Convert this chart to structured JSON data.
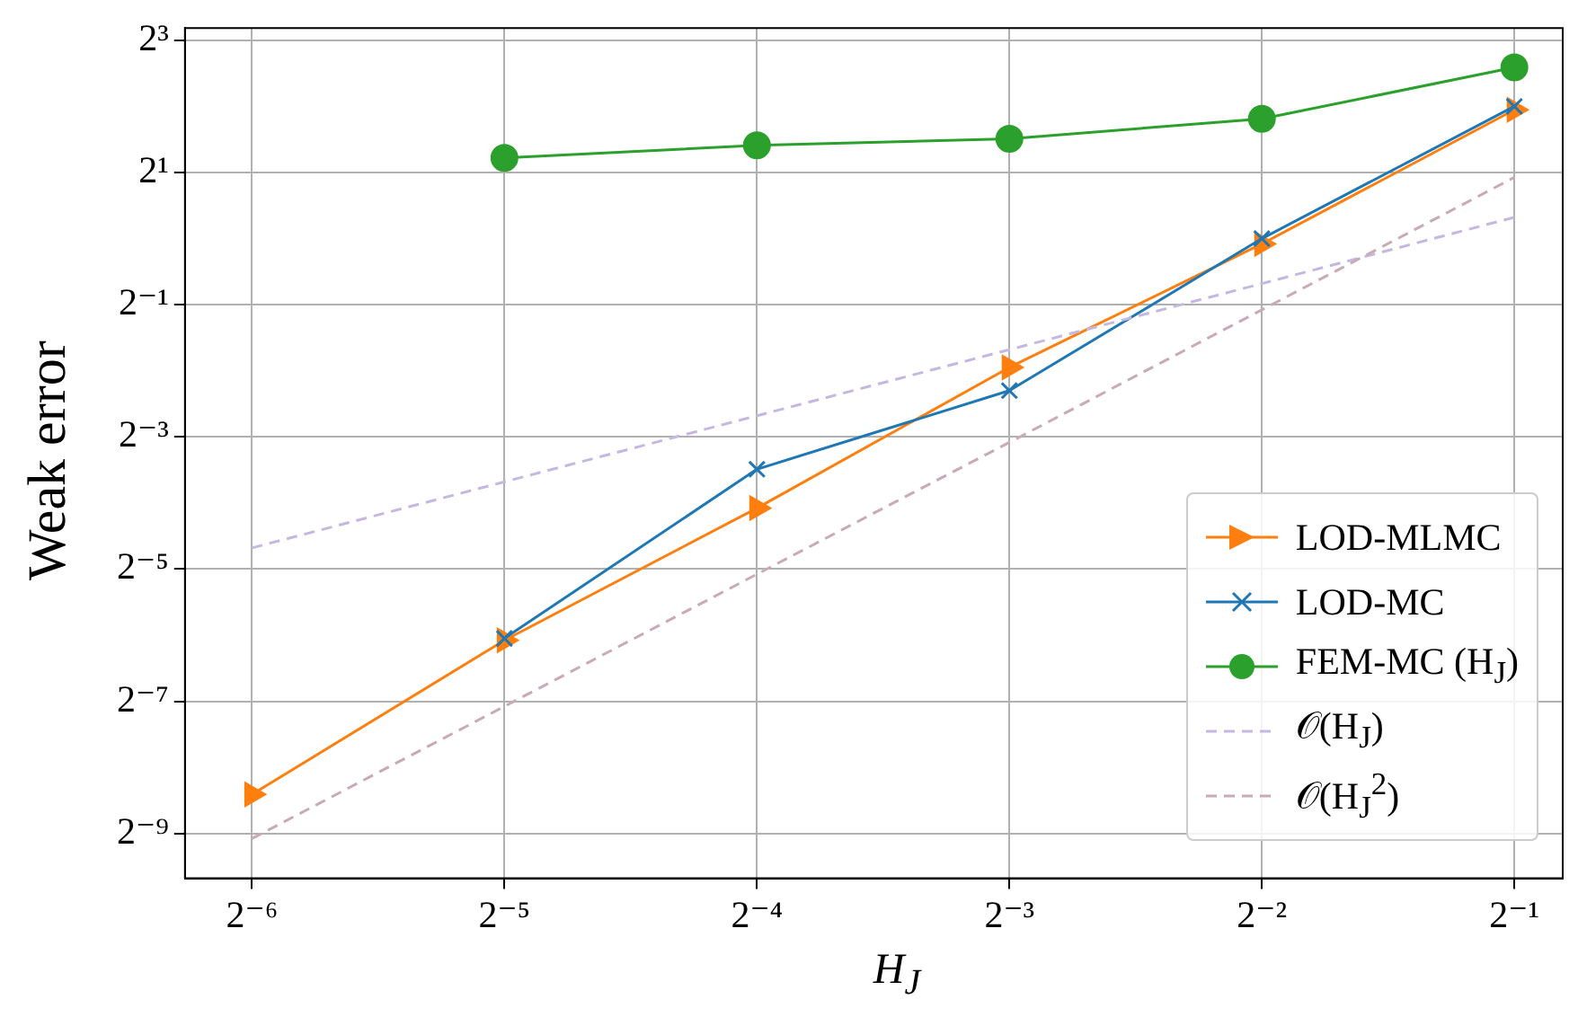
{
  "chart_data": {
    "type": "line",
    "xlabel": "H$_{J}$",
    "ylabel": "Weak error",
    "x": [
      0.015625,
      0.03125,
      0.0625,
      0.125,
      0.25,
      0.5
    ],
    "xlim": [
      0.013,
      0.571
    ],
    "ylim": [
      0.00122,
      9.1
    ],
    "log": "xy",
    "grid": true,
    "legend": "bottom right",
    "xticks": [
      {
        "value": 0.015625,
        "label": "2⁻⁶"
      },
      {
        "value": 0.03125,
        "label": "2⁻⁵"
      },
      {
        "value": 0.0625,
        "label": "2⁻⁴"
      },
      {
        "value": 0.125,
        "label": "2⁻³"
      },
      {
        "value": 0.25,
        "label": "2⁻²"
      },
      {
        "value": 0.5,
        "label": "2⁻¹"
      }
    ],
    "yticks": [
      {
        "value": 0.001953125,
        "label": "2⁻⁹"
      },
      {
        "value": 0.0078125,
        "label": "2⁻⁷"
      },
      {
        "value": 0.03125,
        "label": "2⁻⁵"
      },
      {
        "value": 0.125,
        "label": "2⁻³"
      },
      {
        "value": 0.5,
        "label": "2⁻¹"
      },
      {
        "value": 2,
        "label": "2¹"
      },
      {
        "value": 8,
        "label": "2³"
      }
    ],
    "series": [
      {
        "name": "LOD-MLMC",
        "color": "#ff7f0e",
        "marker": "triangle",
        "line_style": "solid",
        "values": [
          0.00294,
          0.0148,
          0.0592,
          0.259,
          0.946,
          3.86
        ]
      },
      {
        "name": "LOD-MC",
        "color": "#1f77b4",
        "marker": "cross",
        "line_style": "solid",
        "values": [
          null,
          0.0151,
          0.089,
          0.203,
          1.0,
          4.0
        ]
      },
      {
        "name": "FEM-MC (H$_{J}$)",
        "color": "#2ca02c",
        "marker": "circle",
        "line_style": "solid",
        "values": [
          null,
          2.33,
          2.66,
          2.85,
          3.51,
          6.02
        ]
      },
      {
        "name": "𝒪(H$_{J}$)",
        "color": "#c5b8e0",
        "marker": "none",
        "line_style": "dashed",
        "values": [
          0.039,
          0.078,
          0.156,
          0.312,
          0.624,
          1.25
        ]
      },
      {
        "name": "𝒪(H$_{J}$$^{2}$)",
        "color": "#c9aab8",
        "marker": "none",
        "line_style": "dashed",
        "values": [
          0.00185,
          0.0074,
          0.0296,
          0.118,
          0.474,
          1.9
        ]
      }
    ]
  }
}
